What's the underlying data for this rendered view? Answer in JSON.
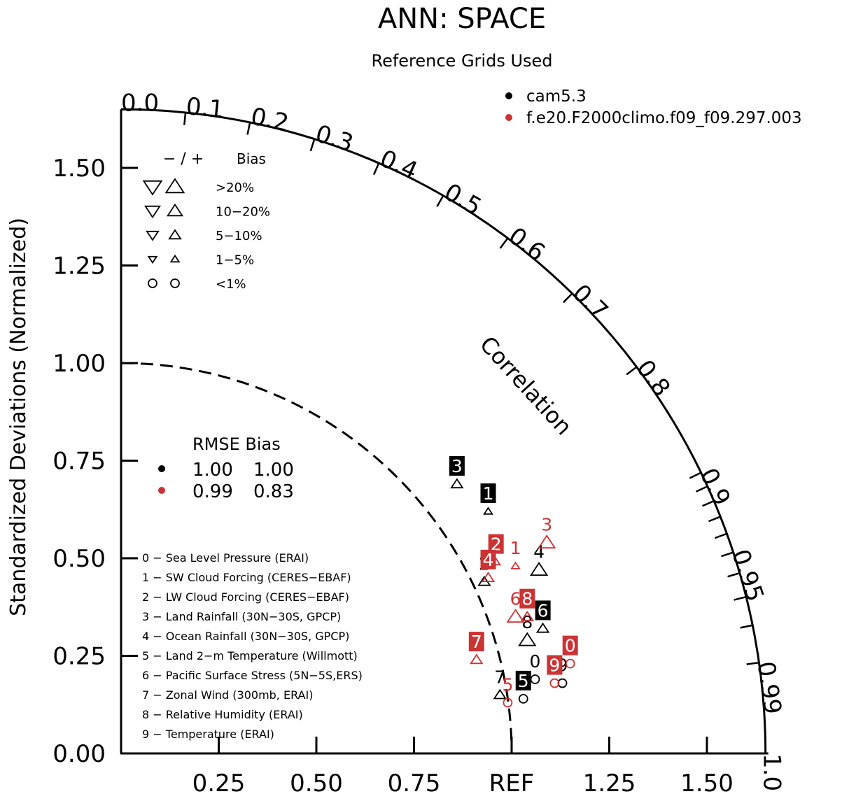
{
  "chart_data": {
    "type": "scatter",
    "title": "ANN: SPACE",
    "subtitle": "Reference Grids Used",
    "ylabel": "Standardized Deviations (Normalized)",
    "arc_label": "Correlation",
    "std_range": [
      0,
      1.65
    ],
    "y_ticks": [
      "0.00",
      "0.25",
      "0.50",
      "0.75",
      "1.00",
      "1.25",
      "1.50"
    ],
    "x_ticks": [
      "0.25",
      "0.50",
      "0.75",
      "REF",
      "1.25",
      "1.50"
    ],
    "correlation_labels": [
      {
        "r": 0.0,
        "text": "0.0"
      },
      {
        "r": 0.1,
        "text": "0.1"
      },
      {
        "r": 0.2,
        "text": "0.2"
      },
      {
        "r": 0.3,
        "text": "0.3"
      },
      {
        "r": 0.4,
        "text": "0.4"
      },
      {
        "r": 0.5,
        "text": "0.5"
      },
      {
        "r": 0.6,
        "text": "0.6"
      },
      {
        "r": 0.7,
        "text": "0.7"
      },
      {
        "r": 0.8,
        "text": "0.8"
      },
      {
        "r": 0.9,
        "text": "0.9"
      },
      {
        "r": 0.95,
        "text": "0.95"
      },
      {
        "r": 0.99,
        "text": "0.99"
      },
      {
        "r": 1.0,
        "text": "1.0"
      }
    ],
    "case_legend": [
      {
        "name": "cam5.3",
        "color": "#000000"
      },
      {
        "name": "f.e20.F2000climo.f09_f09.297.003",
        "color": "#cc3333"
      }
    ],
    "bias_legend": {
      "header_sign": "− / +",
      "header_label": "Bias",
      "rows": [
        ">20%",
        "10−20%",
        "5−10%",
        "1−5%",
        "<1%"
      ]
    },
    "rmse_table": {
      "header": "RMSE Bias",
      "rows": [
        {
          "color": "#000000",
          "rmse": "1.00",
          "bias": "1.00"
        },
        {
          "color": "#cc3333",
          "rmse": "0.99",
          "bias": "0.83"
        }
      ]
    },
    "variables": [
      "0 − Sea Level Pressure (ERAI)",
      "1 − SW Cloud Forcing (CERES−EBAF)",
      "2 − LW Cloud Forcing (CERES−EBAF)",
      "3 − Land Rainfall (30N−30S, GPCP)",
      "4 − Ocean Rainfall (30N−30S, GPCP)",
      "5 − Land 2−m Temperature (Willmott)",
      "6 − Pacific Surface Stress (5N−5S,ERS)",
      "7 − Zonal Wind (300mb, ERAI)",
      "8 − Relative Humidity (ERAI)",
      "9 − Temperature (ERAI)"
    ],
    "series": [
      {
        "name": "cam5.3",
        "color": "#000000",
        "points": [
          {
            "id": "0",
            "x": 1.06,
            "y": 0.19,
            "marker": "circle",
            "label_style": "plain"
          },
          {
            "id": "1",
            "x": 0.94,
            "y": 0.62,
            "marker": "up-small",
            "label_style": "boxed"
          },
          {
            "id": "2",
            "x": 0.93,
            "y": 0.44,
            "marker": "up-medium",
            "label_style": "plain"
          },
          {
            "id": "3",
            "x": 0.86,
            "y": 0.69,
            "marker": "up-medium",
            "label_style": "boxed"
          },
          {
            "id": "4",
            "x": 1.07,
            "y": 0.47,
            "marker": "up-large",
            "label_style": "plain"
          },
          {
            "id": "5",
            "x": 1.03,
            "y": 0.14,
            "marker": "circle",
            "label_style": "boxed"
          },
          {
            "id": "6",
            "x": 1.08,
            "y": 0.32,
            "marker": "up-medium",
            "label_style": "boxed"
          },
          {
            "id": "7",
            "x": 0.97,
            "y": 0.15,
            "marker": "up-medium",
            "label_style": "plain"
          },
          {
            "id": "8",
            "x": 1.04,
            "y": 0.29,
            "marker": "up-large",
            "label_style": "plain"
          },
          {
            "id": "9",
            "x": 1.13,
            "y": 0.18,
            "marker": "circle",
            "label_style": "plain"
          }
        ]
      },
      {
        "name": "f.e20.F2000climo.f09_f09.297.003",
        "color": "#cc3333",
        "points": [
          {
            "id": "0",
            "x": 1.15,
            "y": 0.23,
            "marker": "circle",
            "label_style": "boxed"
          },
          {
            "id": "1",
            "x": 1.01,
            "y": 0.48,
            "marker": "up-small",
            "label_style": "plain"
          },
          {
            "id": "2",
            "x": 0.96,
            "y": 0.49,
            "marker": "up-small",
            "label_style": "boxed"
          },
          {
            "id": "3",
            "x": 1.09,
            "y": 0.54,
            "marker": "up-large",
            "label_style": "plain"
          },
          {
            "id": "4",
            "x": 0.94,
            "y": 0.45,
            "marker": "up-medium",
            "label_style": "boxed"
          },
          {
            "id": "5",
            "x": 0.99,
            "y": 0.13,
            "marker": "circle",
            "label_style": "plain"
          },
          {
            "id": "6",
            "x": 1.01,
            "y": 0.35,
            "marker": "up-large",
            "label_style": "plain"
          },
          {
            "id": "7",
            "x": 0.91,
            "y": 0.24,
            "marker": "up-medium",
            "label_style": "boxed"
          },
          {
            "id": "8",
            "x": 1.04,
            "y": 0.35,
            "marker": "up-medium",
            "label_style": "boxed"
          },
          {
            "id": "9",
            "x": 1.11,
            "y": 0.18,
            "marker": "circle",
            "label_style": "boxed"
          }
        ]
      }
    ]
  }
}
